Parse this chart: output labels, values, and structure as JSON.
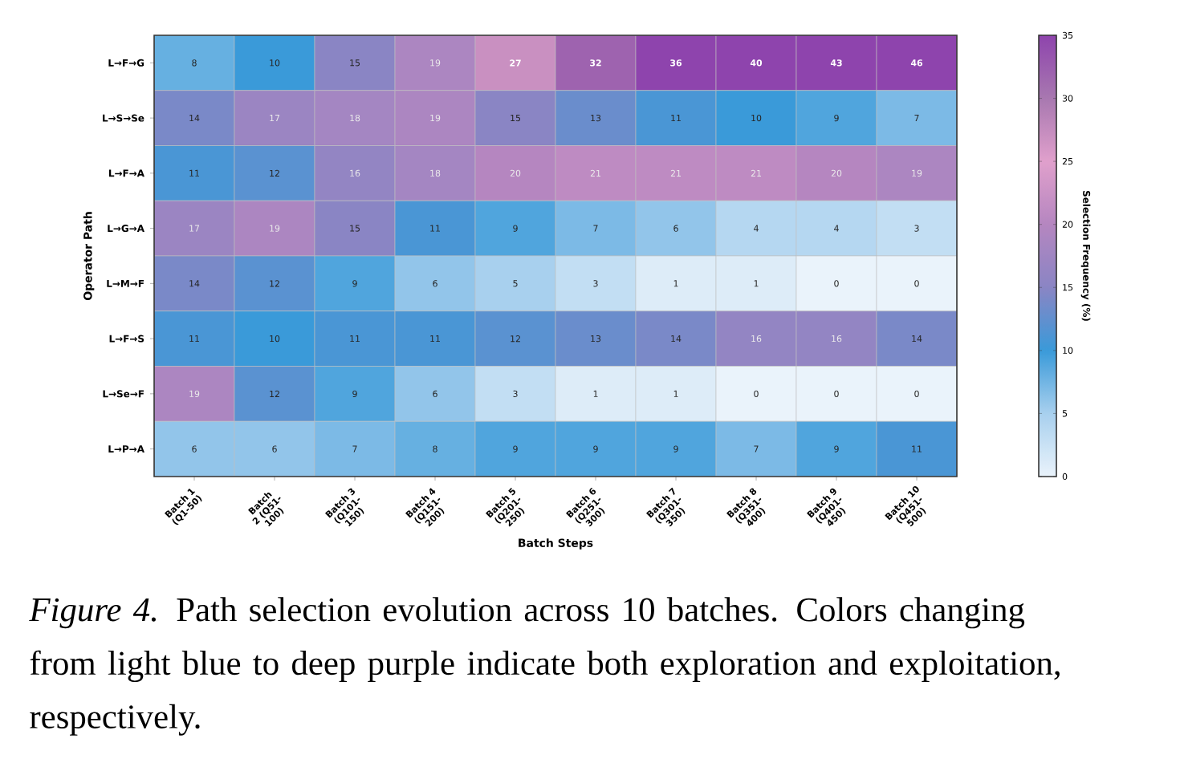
{
  "chart_data": {
    "type": "heatmap",
    "xlabel": "Batch Steps",
    "ylabel": "Operator Path",
    "clabel": "Selection Frequency (%)",
    "categories": [
      "Batch 1 (Q1-50)",
      "Batch 2 (Q51-100)",
      "Batch 3 (Q101-150)",
      "Batch 4 (Q151-200)",
      "Batch 5 (Q201-250)",
      "Batch 6 (Q251-300)",
      "Batch 7 (Q301-350)",
      "Batch 8 (Q351-400)",
      "Batch 9 (Q401-450)",
      "Batch 10 (Q451-500)"
    ],
    "y_categories": [
      "L→F→G",
      "L→S→Se",
      "L→F→A",
      "L→G→A",
      "L→M→F",
      "L→F→S",
      "L→Se→F",
      "L→P→A"
    ],
    "cells": [
      [
        8,
        10,
        15,
        19,
        27,
        32,
        36,
        40,
        43,
        46
      ],
      [
        14,
        17,
        18,
        19,
        15,
        13,
        11,
        10,
        9,
        7
      ],
      [
        11,
        12,
        16,
        18,
        20,
        21,
        21,
        21,
        20,
        19
      ],
      [
        17,
        19,
        15,
        11,
        9,
        7,
        6,
        4,
        4,
        3
      ],
      [
        14,
        12,
        9,
        6,
        5,
        3,
        1,
        1,
        0,
        0
      ],
      [
        11,
        10,
        11,
        11,
        12,
        13,
        14,
        16,
        16,
        14
      ],
      [
        19,
        12,
        9,
        6,
        3,
        1,
        1,
        0,
        0,
        0
      ],
      [
        6,
        6,
        7,
        8,
        9,
        9,
        9,
        7,
        9,
        11
      ]
    ],
    "clim": [
      0,
      35
    ],
    "cticks": [
      0,
      5,
      10,
      15,
      20,
      25,
      30,
      35
    ],
    "data_labels": true,
    "annotations": [
      "*Figure 4.* Path selection evolution across 10 batches. Colors changing from light blue to deep purple indicate both exploration and exploitation, respectively."
    ]
  }
}
